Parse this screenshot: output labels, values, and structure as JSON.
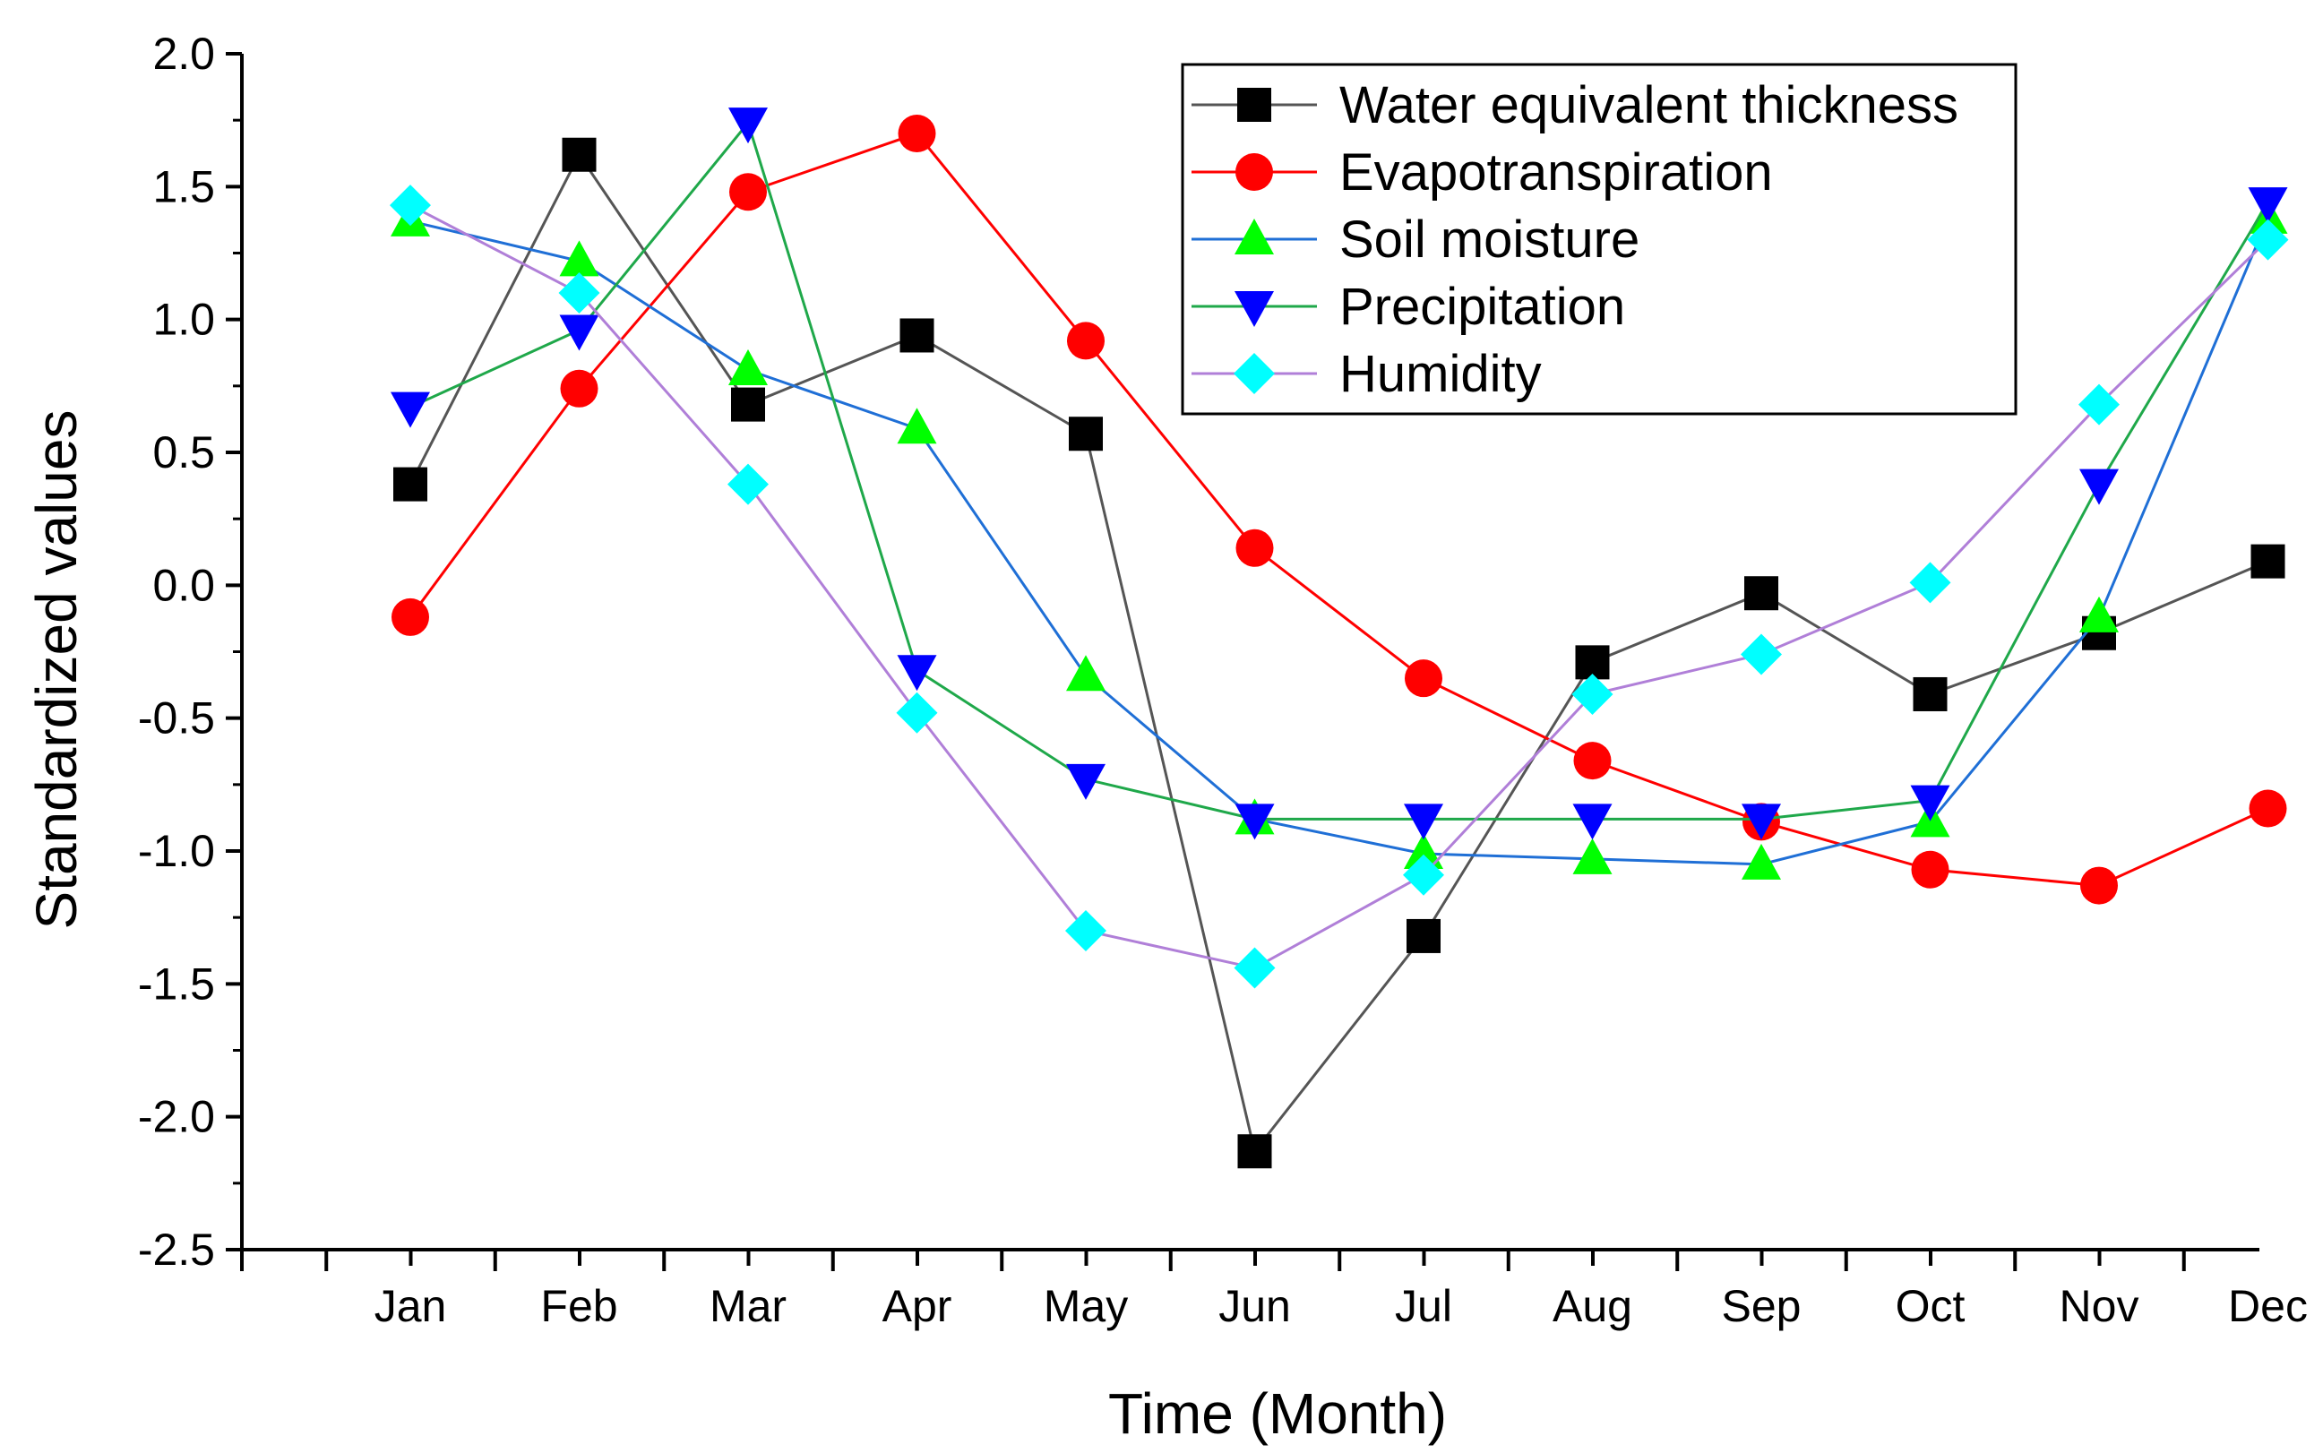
{
  "chart_data": {
    "type": "line",
    "title": "",
    "xlabel": "Time (Month)",
    "ylabel": "Standardized values",
    "categories": [
      "Jan",
      "Feb",
      "Mar",
      "Apr",
      "May",
      "Jun",
      "Jul",
      "Aug",
      "Sep",
      "Oct",
      "Nov",
      "Dec"
    ],
    "ylim": [
      -2.5,
      2.0
    ],
    "yticks": [
      "2.0",
      "1.5",
      "1.0",
      "0.5",
      "0.0",
      "-0.5",
      "-1.0",
      "-1.5",
      "-2.0",
      "-2.5"
    ],
    "ytick_values": [
      2.0,
      1.5,
      1.0,
      0.5,
      0.0,
      -0.5,
      -1.0,
      -1.5,
      -2.0,
      -2.5
    ],
    "grid": false,
    "legend_position": "top-right",
    "series": [
      {
        "name": "Water equivalent thickness",
        "marker": "square",
        "line_color": "#555555",
        "marker_color": "#000000",
        "values": [
          0.38,
          1.62,
          0.68,
          0.94,
          0.57,
          -2.13,
          -1.32,
          -0.29,
          -0.03,
          -0.41,
          -0.18,
          0.09
        ]
      },
      {
        "name": "Evapotranspiration",
        "marker": "circle",
        "line_color": "#ff0000",
        "marker_color": "#ff0000",
        "values": [
          -0.12,
          0.74,
          1.48,
          1.7,
          0.92,
          0.14,
          -0.35,
          -0.66,
          -0.89,
          -1.07,
          -1.13,
          -0.84
        ]
      },
      {
        "name": "Soil moisture",
        "marker": "triangle-up",
        "line_color": "#1f6fd6",
        "marker_color": "#00ff00",
        "values": [
          1.37,
          1.22,
          0.81,
          0.59,
          -0.34,
          -0.88,
          -1.01,
          -1.03,
          -1.05,
          -0.89,
          -0.12,
          1.38
        ]
      },
      {
        "name": "Precipitation",
        "marker": "triangle-down",
        "line_color": "#1fa84a",
        "marker_color": "#0000ff",
        "values": [
          0.67,
          0.96,
          1.74,
          -0.32,
          -0.73,
          -0.88,
          -0.88,
          -0.88,
          -0.88,
          -0.81,
          0.38,
          1.44
        ]
      },
      {
        "name": "Humidity",
        "marker": "diamond",
        "line_color": "#b07fd8",
        "marker_color": "#00ffff",
        "values": [
          1.43,
          1.1,
          0.38,
          -0.48,
          -1.3,
          -1.44,
          -1.09,
          -0.41,
          -0.26,
          0.01,
          0.68,
          1.3
        ]
      }
    ]
  }
}
